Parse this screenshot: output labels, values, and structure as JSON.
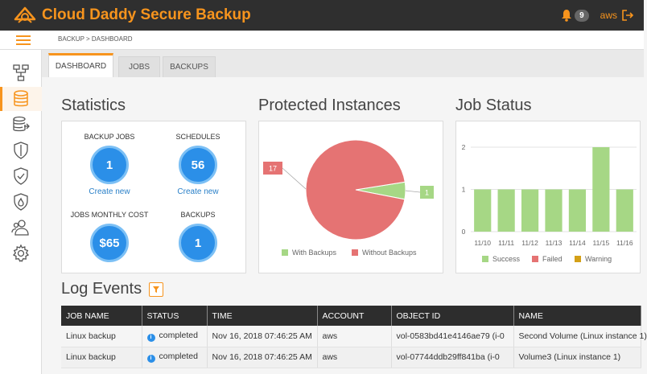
{
  "app": {
    "title": "Cloud Daddy Secure Backup",
    "notification_count": "9",
    "user": "aws"
  },
  "breadcrumb": "BACKUP > DASHBOARD",
  "sidebar": {
    "items": [
      {
        "icon": "network-icon"
      },
      {
        "icon": "database-icon",
        "active": true
      },
      {
        "icon": "database-transfer-icon"
      },
      {
        "icon": "shield-icon"
      },
      {
        "icon": "shield-check-icon"
      },
      {
        "icon": "shield-fire-icon"
      },
      {
        "icon": "users-icon"
      },
      {
        "icon": "gear-icon"
      }
    ]
  },
  "tabs": [
    {
      "label": "DASHBOARD",
      "active": true
    },
    {
      "label": "JOBS",
      "active": false
    },
    {
      "label": "BACKUPS",
      "active": false
    }
  ],
  "statistics": {
    "title": "Statistics",
    "items": [
      {
        "label": "BACKUP JOBS",
        "value": "1",
        "link": "Create new"
      },
      {
        "label": "SCHEDULES",
        "value": "56",
        "link": "Create new"
      },
      {
        "label": "JOBS MONTHLY COST",
        "value": "$65",
        "link": ""
      },
      {
        "label": "BACKUPS",
        "value": "1",
        "link": ""
      }
    ]
  },
  "protected": {
    "title": "Protected Instances"
  },
  "jobstatus": {
    "title": "Job Status"
  },
  "chart_data": [
    {
      "type": "pie",
      "slices": [
        {
          "name": "With Backups",
          "value": 1,
          "color": "#a6d785"
        },
        {
          "name": "Without Backups",
          "value": 17,
          "color": "#e57373"
        }
      ]
    },
    {
      "type": "bar",
      "categories": [
        "11/10",
        "11/11",
        "11/12",
        "11/13",
        "11/14",
        "11/15",
        "11/16"
      ],
      "series": [
        {
          "name": "Success",
          "values": [
            1,
            1,
            1,
            1,
            1,
            2,
            1
          ],
          "color": "#a6d785"
        },
        {
          "name": "Failed",
          "values": [
            0,
            0,
            0,
            0,
            0,
            0,
            0
          ],
          "color": "#e57373"
        },
        {
          "name": "Warning",
          "values": [
            0,
            0,
            0,
            0,
            0,
            0,
            0
          ],
          "color": "#d4a017"
        }
      ],
      "yticks": [
        "0",
        "1",
        "2"
      ],
      "ylim": [
        0,
        2
      ],
      "grid": true,
      "legend": "bottom"
    }
  ],
  "logs": {
    "title": "Log Events",
    "columns": [
      "JOB NAME",
      "STATUS",
      "TIME",
      "ACCOUNT",
      "OBJECT ID",
      "NAME"
    ],
    "rows": [
      [
        "Linux backup",
        "completed",
        "Nov 16, 2018 07:46:25 AM",
        "aws",
        "vol-0583bd41e4146ae79 (i-0",
        "Second Volume (Linux instance 1)"
      ],
      [
        "Linux backup",
        "completed",
        "Nov 16, 2018 07:46:25 AM",
        "aws",
        "vol-07744ddb29ff841ba (i-0",
        "Volume3 (Linux instance 1)"
      ]
    ]
  },
  "colors": {
    "accent": "#f7941d",
    "topbar": "#2f2f2f",
    "stat_circle": "#2b8fe8",
    "link": "#2a80c8"
  }
}
